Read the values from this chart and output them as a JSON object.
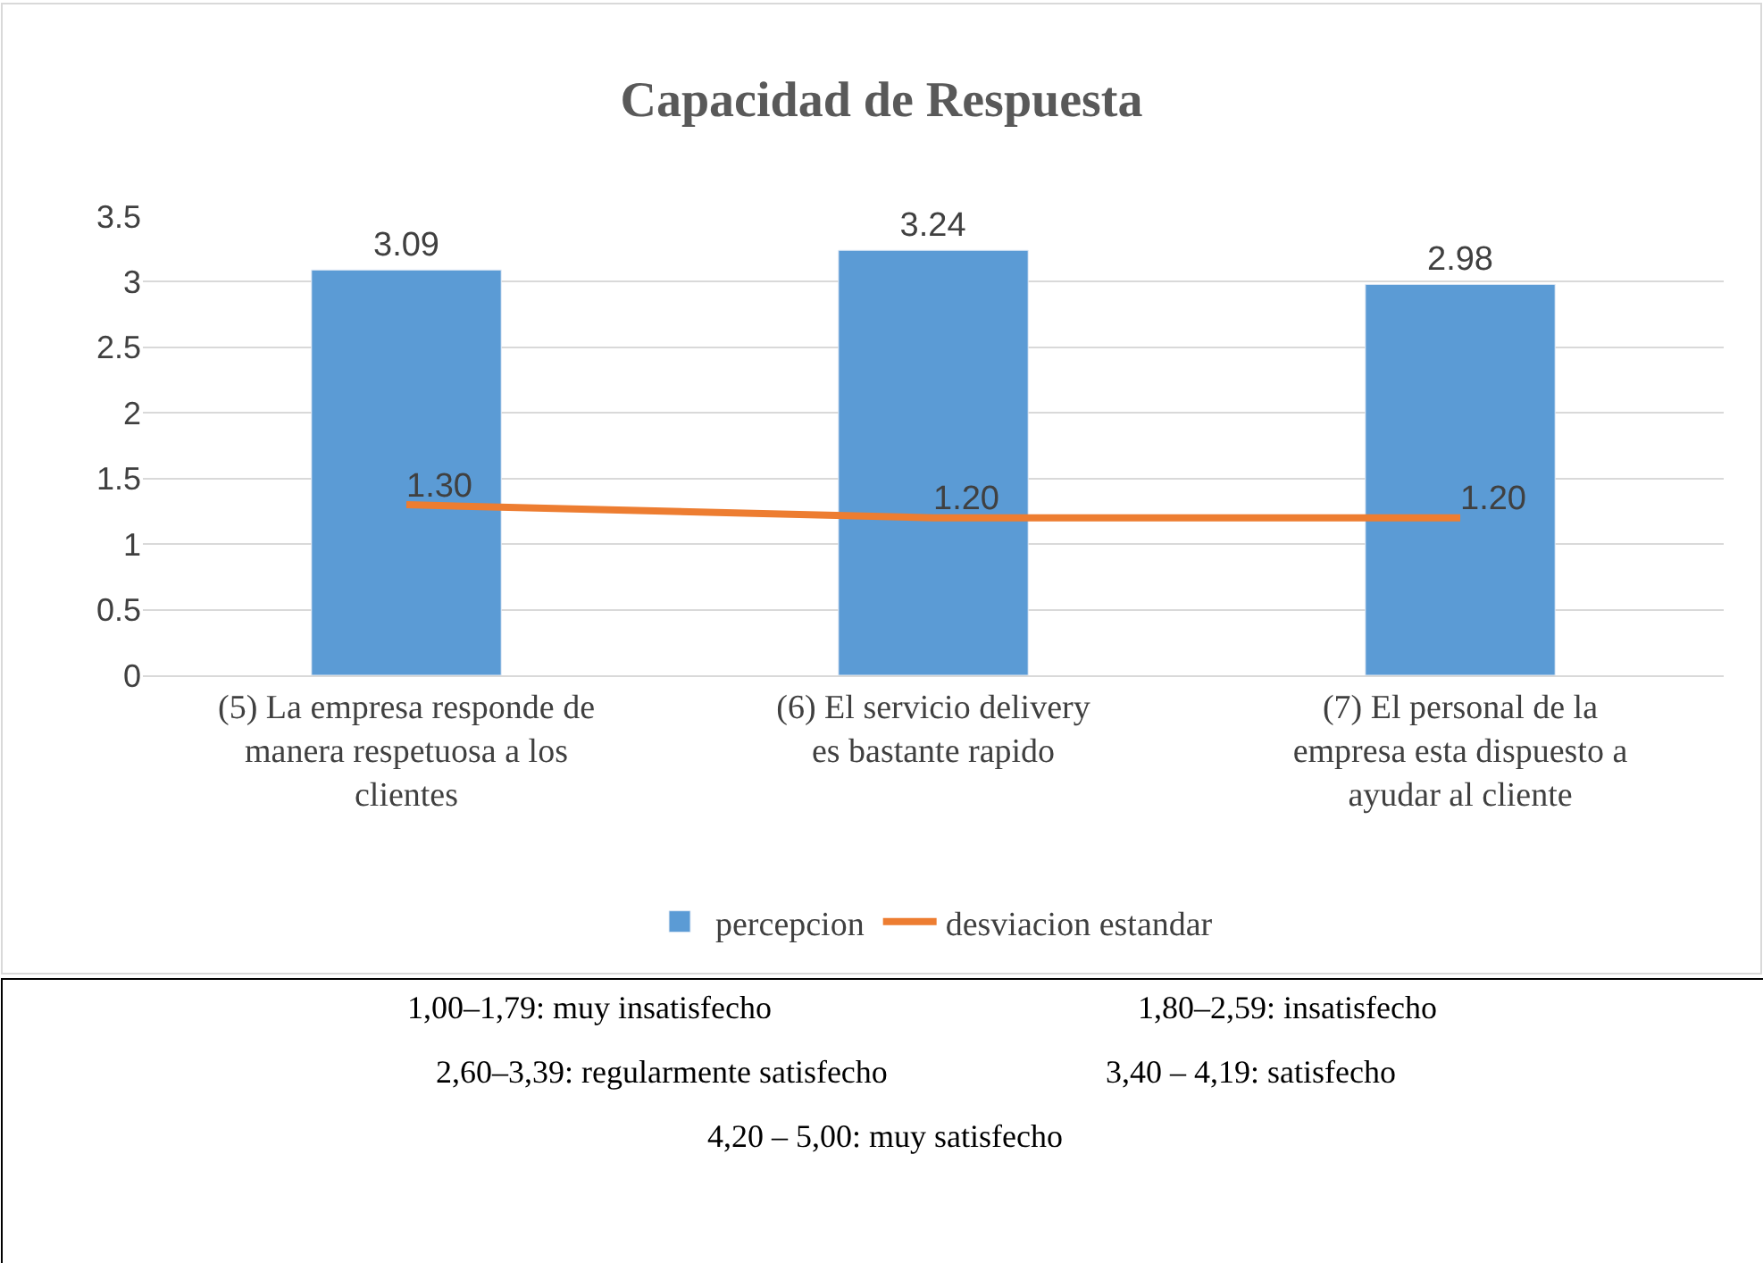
{
  "chart_data": {
    "type": "bar",
    "title": "Capacidad de Respuesta",
    "categories": [
      "(5) La empresa responde de manera respetuosa a los clientes",
      "(6) El servicio delivery es bastante rapido",
      "(7) El personal de la empresa esta dispuesto a ayudar al cliente"
    ],
    "series": [
      {
        "name": "percepcion",
        "color": "#5b9bd5",
        "values": [
          3.09,
          3.24,
          2.98
        ],
        "value_labels": [
          "3.09",
          "3.24",
          "2.98"
        ]
      },
      {
        "name": "desviacion estandar",
        "type": "line",
        "color": "#ed7d31",
        "values": [
          1.3,
          1.2,
          1.2
        ],
        "value_labels": [
          "1.30",
          "1.20",
          "1.20"
        ],
        "marker": "none"
      }
    ],
    "ylim": [
      0,
      3.5
    ],
    "yticks": [
      0,
      0.5,
      1,
      1.5,
      2,
      2.5,
      3,
      3.5
    ],
    "grid": "y",
    "legend": "bottom",
    "annotations": [
      "1,00–1,79: muy insatisfecho",
      "1,80–2,59: insatisfecho",
      "2,60–3,39: regularmente satisfecho",
      "3,40 – 4,19: satisfecho",
      "4,20 – 5,00: muy satisfecho"
    ]
  }
}
